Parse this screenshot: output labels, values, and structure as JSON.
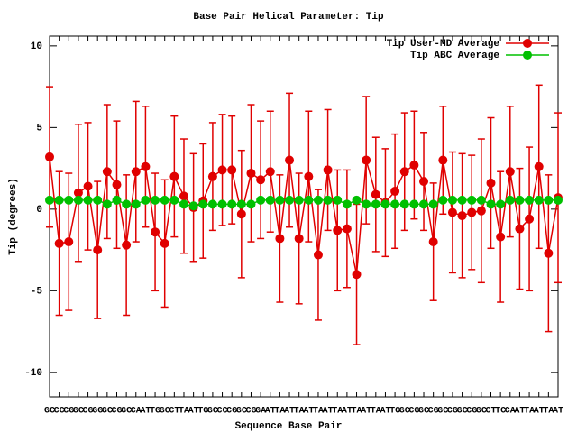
{
  "chart_data": {
    "type": "line",
    "title": "Base Pair Helical Parameter: Tip",
    "xlabel": "Sequence Base Pair",
    "ylabel": "Tip (degrees)",
    "categories": [
      "GC",
      "CC",
      "CG",
      "GC",
      "CG",
      "GG",
      "GC",
      "CG",
      "GC",
      "CA",
      "AT",
      "TG",
      "GC",
      "CT",
      "TA",
      "AT",
      "TG",
      "GC",
      "CC",
      "CG",
      "GC",
      "CG",
      "GA",
      "AT",
      "TA",
      "AT",
      "TA",
      "AT",
      "TA",
      "AT",
      "TA",
      "AT",
      "TA",
      "AT",
      "TA",
      "AT",
      "TG",
      "GC",
      "CG",
      "GC",
      "CG",
      "GC",
      "CG",
      "GC",
      "CG",
      "GC",
      "CT",
      "TC",
      "CA",
      "AT",
      "TA",
      "AT",
      "TA",
      "AT"
    ],
    "ylim": [
      -11.5,
      10.6
    ],
    "yticks": [
      -10,
      -5,
      0,
      5,
      10
    ],
    "legend": "upper right",
    "series": [
      {
        "name": "Tip User-MD Average",
        "color": "#e00000",
        "values": [
          3.2,
          -2.1,
          -2.0,
          1.0,
          1.4,
          -2.5,
          2.3,
          1.5,
          -2.2,
          2.3,
          2.6,
          -1.4,
          -2.1,
          2.0,
          0.8,
          0.1,
          0.5,
          2.0,
          2.4,
          2.4,
          -0.3,
          2.2,
          1.8,
          2.3,
          -1.8,
          3.0,
          -1.8,
          2.0,
          -2.8,
          2.4,
          -1.3,
          -1.2,
          -4.0,
          3.0,
          0.9,
          0.4,
          1.1,
          2.3,
          2.7,
          1.7,
          -2.0,
          3.0,
          -0.2,
          -0.4,
          -0.2,
          -0.1,
          1.6,
          -1.7,
          2.3,
          -1.2,
          -0.6,
          2.6,
          -2.7,
          0.7
        ],
        "errors": [
          4.3,
          4.4,
          4.2,
          4.2,
          3.9,
          4.2,
          4.1,
          3.9,
          4.3,
          4.3,
          3.7,
          3.6,
          3.9,
          3.7,
          3.5,
          3.3,
          3.5,
          3.3,
          3.4,
          3.3,
          3.9,
          4.2,
          3.6,
          3.7,
          3.9,
          4.1,
          4.0,
          4.0,
          4.0,
          3.7,
          3.7,
          3.6,
          4.3,
          3.9,
          3.5,
          3.3,
          3.5,
          3.6,
          3.3,
          3.0,
          3.6,
          3.3,
          3.7,
          3.8,
          3.5,
          4.4,
          4.0,
          4.0,
          4.0,
          3.7,
          4.4,
          5.0,
          4.8,
          5.2
        ]
      },
      {
        "name": "Tip ABC Average",
        "color": "#00c000",
        "values": [
          0.55,
          0.55,
          0.55,
          0.55,
          0.55,
          0.55,
          0.3,
          0.55,
          0.3,
          0.3,
          0.55,
          0.55,
          0.55,
          0.55,
          0.3,
          0.2,
          0.3,
          0.3,
          0.3,
          0.3,
          0.3,
          0.3,
          0.55,
          0.55,
          0.55,
          0.55,
          0.55,
          0.55,
          0.55,
          0.55,
          0.55,
          0.3,
          0.55,
          0.3,
          0.3,
          0.3,
          0.3,
          0.3,
          0.3,
          0.3,
          0.3,
          0.55,
          0.55,
          0.55,
          0.55,
          0.55,
          0.3,
          0.3,
          0.55,
          0.55,
          0.55,
          0.55,
          0.55,
          0.55
        ]
      }
    ]
  }
}
